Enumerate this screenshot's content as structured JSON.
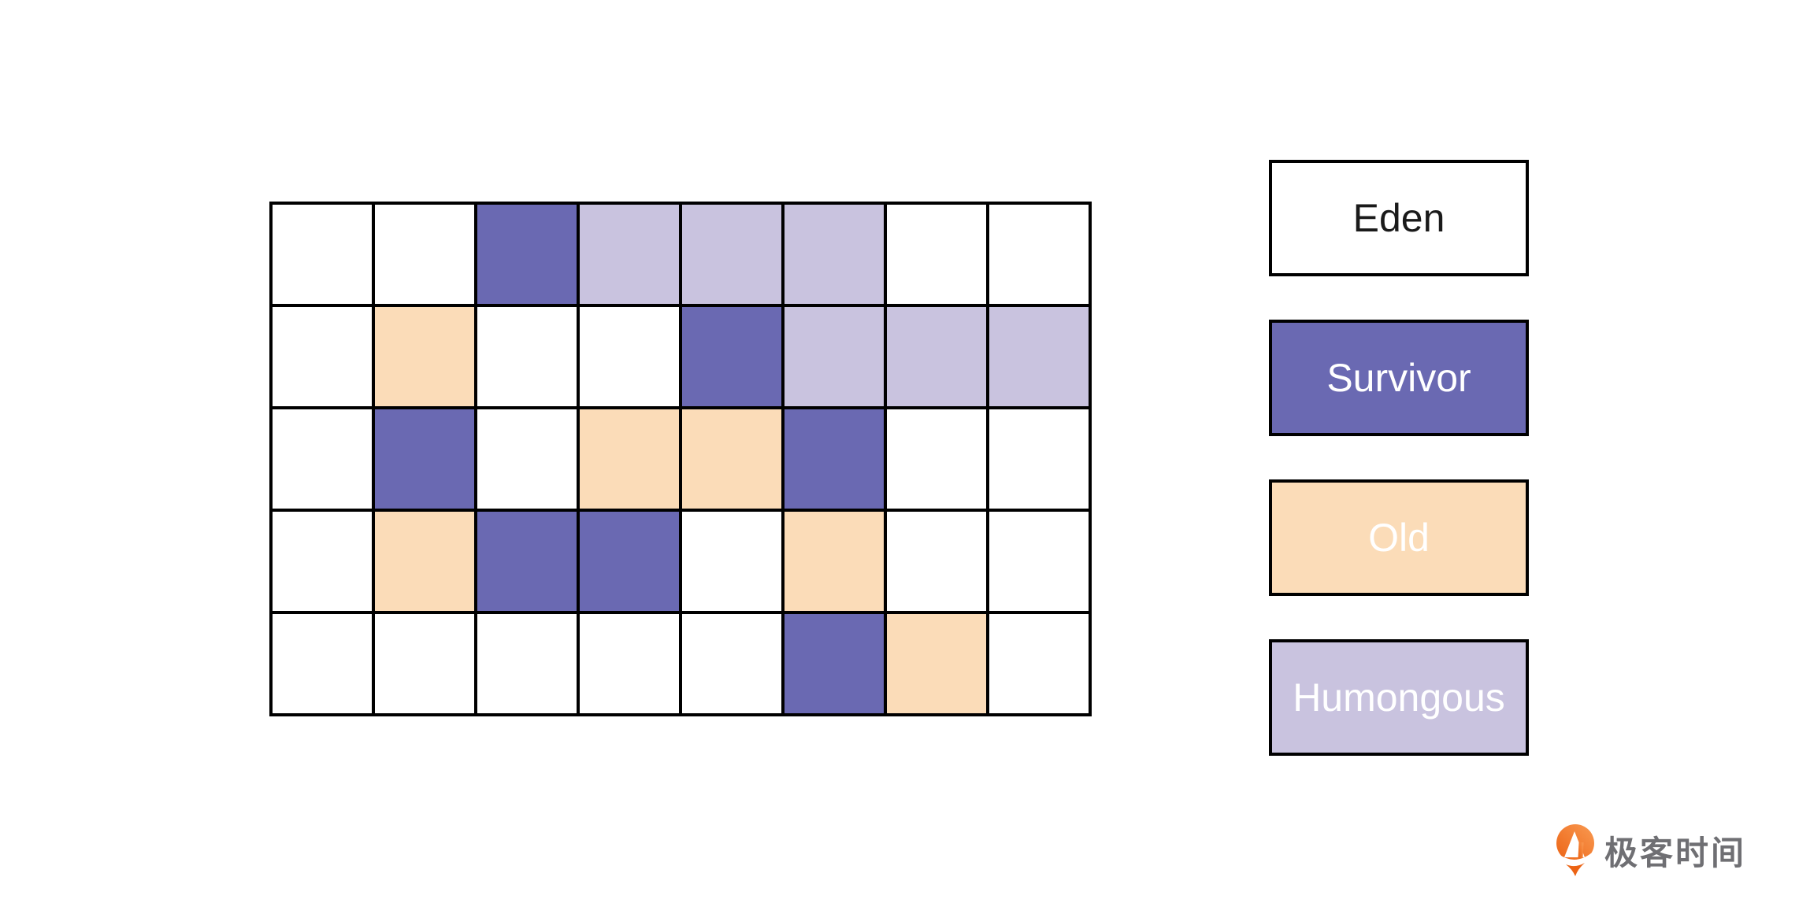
{
  "grid": {
    "rows": 5,
    "cols": 8,
    "cell_types": [
      [
        "eden",
        "eden",
        "survivor",
        "humongous",
        "humongous",
        "humongous",
        "eden",
        "eden"
      ],
      [
        "eden",
        "old",
        "eden",
        "eden",
        "survivor",
        "humongous",
        "humongous",
        "humongous"
      ],
      [
        "eden",
        "survivor",
        "eden",
        "old",
        "old",
        "survivor",
        "eden",
        "eden"
      ],
      [
        "eden",
        "old",
        "survivor",
        "survivor",
        "eden",
        "old",
        "eden",
        "eden"
      ],
      [
        "eden",
        "eden",
        "eden",
        "eden",
        "eden",
        "survivor",
        "old",
        "eden"
      ]
    ],
    "border_color": "#000000"
  },
  "region_colors": {
    "eden": {
      "fill": "#ffffff",
      "text": "#1a1a1a"
    },
    "survivor": {
      "fill": "#6a69b2",
      "text": "#ffffff"
    },
    "old": {
      "fill": "#fbdcb8",
      "text": "#ffffff"
    },
    "humongous": {
      "fill": "#c9c3df",
      "text": "#ffffff"
    }
  },
  "legend": {
    "items": [
      {
        "key": "eden",
        "label": "Eden"
      },
      {
        "key": "survivor",
        "label": "Survivor"
      },
      {
        "key": "old",
        "label": "Old"
      },
      {
        "key": "humongous",
        "label": "Humongous"
      }
    ]
  },
  "branding": {
    "logo_text": "极客时间",
    "logo_orange_dark": "#ec6314",
    "logo_orange_light": "#f99a52",
    "text_color": "#6f6f73"
  }
}
